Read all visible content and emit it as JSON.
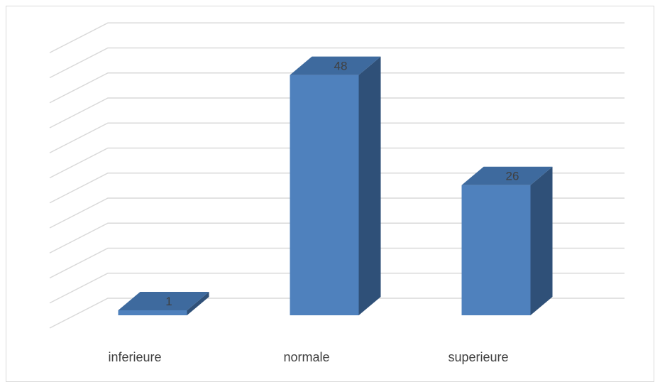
{
  "chart_data": {
    "type": "bar",
    "style": "3d-column",
    "categories": [
      "inferieure",
      "normale",
      "superieure"
    ],
    "values": [
      1,
      48,
      26
    ],
    "data_labels": [
      "1",
      "48",
      "26"
    ],
    "ylim": [
      0,
      55
    ],
    "grid": true,
    "legend": "none",
    "title": "",
    "xlabel": "",
    "ylabel": "",
    "colors": {
      "front": "#4f81bd",
      "top": "#3e6a9e",
      "side": "#2f5078",
      "grid": "#d9d9d9",
      "text": "#404040"
    }
  }
}
